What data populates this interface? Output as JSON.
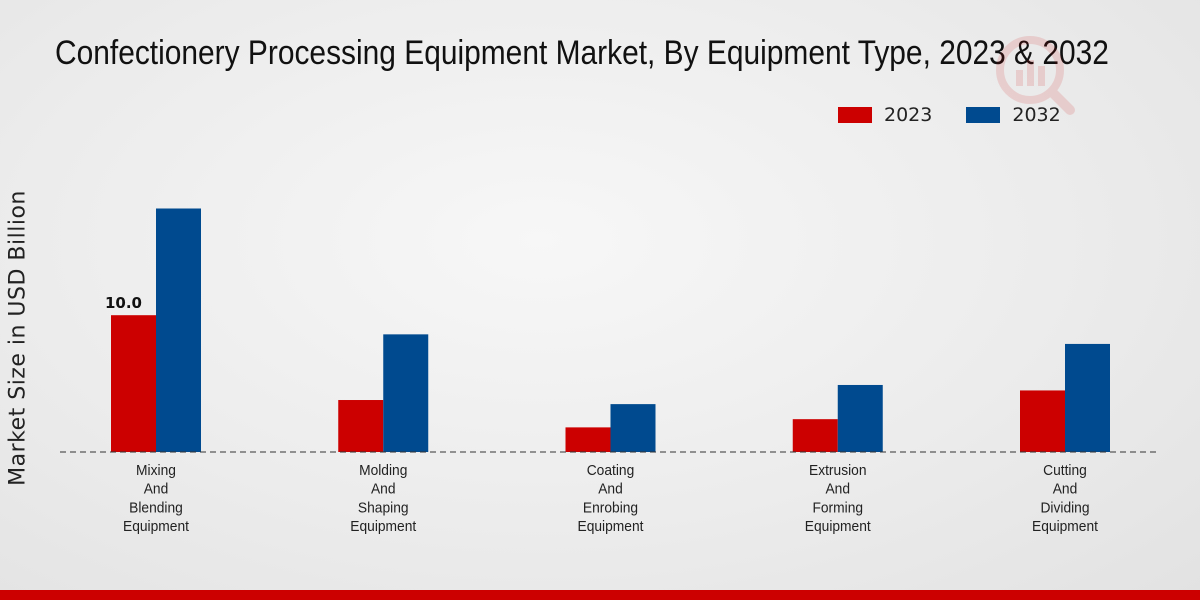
{
  "chart_data": {
    "type": "bar",
    "title": "Confectionery Processing Equipment Market, By Equipment Type, 2023 & 2032",
    "xlabel": "",
    "ylabel": "Market Size in USD Billion",
    "categories": [
      [
        "Mixing",
        "And",
        "Blending",
        "Equipment"
      ],
      [
        "Molding",
        "And",
        "Shaping",
        "Equipment"
      ],
      [
        "Coating",
        "And",
        "Enrobing",
        "Equipment"
      ],
      [
        "Extrusion",
        "And",
        "Forming",
        "Equipment"
      ],
      [
        "Cutting",
        "And",
        "Dividing",
        "Equipment"
      ]
    ],
    "series": [
      {
        "name": "2023",
        "color": "#cc0000",
        "values": [
          10.0,
          3.8,
          1.8,
          2.4,
          4.5
        ]
      },
      {
        "name": "2032",
        "color": "#004a8f",
        "values": [
          17.8,
          8.6,
          3.5,
          4.9,
          7.9
        ]
      }
    ],
    "data_labels": [
      {
        "series": 0,
        "index": 0,
        "text": "10.0"
      }
    ],
    "ylim": [
      0,
      25
    ],
    "legend_position": "top-right",
    "grid": false
  },
  "colors": {
    "accent_bar": "#cc0000"
  }
}
